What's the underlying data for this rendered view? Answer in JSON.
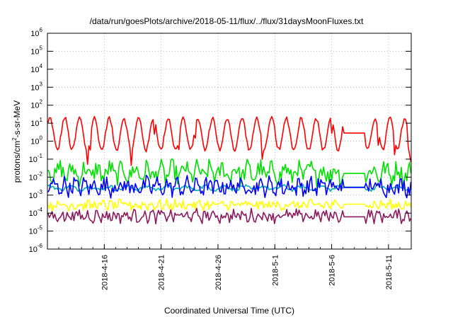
{
  "chart_data": {
    "type": "line",
    "title": "/data/run/goesPlots/archive/2018-05-11/flux/../flux/31daysMoonFluxes.txt",
    "xlabel": "Coordinated Universal Time (UTC)",
    "ylabel": "protons/cm²-s-sr-MeV",
    "yscale": "log",
    "ylim": [
      1e-06,
      1000000.0
    ],
    "xlim": [
      "2018-04-11",
      "2018-05-13"
    ],
    "y_ticks": [
      {
        "base": "10",
        "exp": "-6"
      },
      {
        "base": "10",
        "exp": "-5"
      },
      {
        "base": "10",
        "exp": "-4"
      },
      {
        "base": "10",
        "exp": "-3"
      },
      {
        "base": "10",
        "exp": "-2"
      },
      {
        "base": "10",
        "exp": "-1"
      },
      {
        "base": "10",
        "exp": "0"
      },
      {
        "base": "10",
        "exp": "1"
      },
      {
        "base": "10",
        "exp": "2"
      },
      {
        "base": "10",
        "exp": "3"
      },
      {
        "base": "10",
        "exp": "4"
      },
      {
        "base": "10",
        "exp": "5"
      },
      {
        "base": "10",
        "exp": "6"
      }
    ],
    "x_ticks": [
      "2018-4-16",
      "2018-4-21",
      "2018-4-26",
      "2018-5-1",
      "2018-5-6",
      "2018-5-11"
    ],
    "grid": true,
    "legend": "none",
    "colors": {
      "axes": "#000000",
      "grid": "#a0a0a0"
    },
    "series": [
      {
        "color": "#ff0000",
        "level": 2.5,
        "amplitude_decades": 0.9,
        "noise_decades": 0.12,
        "period_days": 1.3,
        "gap": [
          "2018-05-07",
          "2018-05-09"
        ]
      },
      {
        "color": "#00e000",
        "level": 0.018,
        "amplitude_decades": 0.3,
        "noise_decades": 0.5,
        "period_days": 1.1,
        "gap": [
          "2018-05-07",
          "2018-05-09"
        ]
      },
      {
        "color": "#00b0b0",
        "level": 0.0025,
        "amplitude_decades": 0.1,
        "noise_decades": 0.1,
        "period_days": 1.7,
        "gap": [
          "2018-05-07",
          "2018-05-09"
        ]
      },
      {
        "color": "#0000ff",
        "level": 0.003,
        "amplitude_decades": 0.2,
        "noise_decades": 0.45,
        "period_days": 0.9,
        "gap": [
          "2018-05-07",
          "2018-05-09"
        ]
      },
      {
        "color": "#ffff00",
        "level": 0.00028,
        "amplitude_decades": 0.1,
        "noise_decades": 0.25,
        "period_days": 0.7,
        "gap": [
          "2018-05-07",
          "2018-05-09"
        ]
      },
      {
        "color": "#8b1a5e",
        "level": 7e-05,
        "amplitude_decades": 0.15,
        "noise_decades": 0.3,
        "period_days": 0.8,
        "gap": [
          "2018-05-07",
          "2018-05-09"
        ]
      }
    ]
  }
}
